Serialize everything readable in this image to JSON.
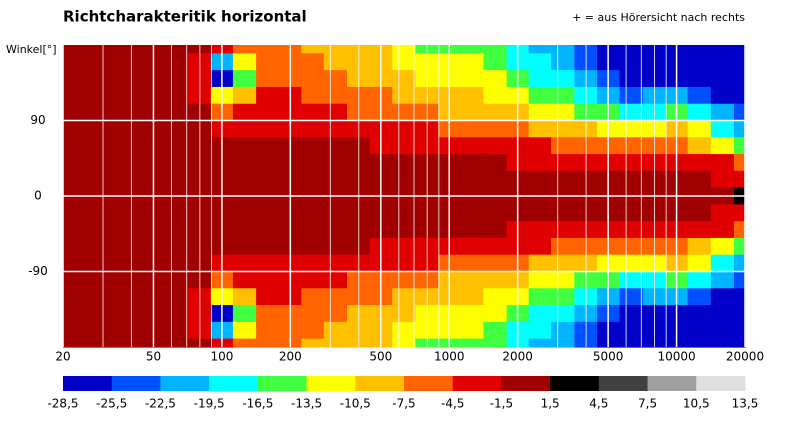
{
  "chart_data": {
    "type": "heatmap",
    "title": "Richtcharakteritik horizontal",
    "annotation": "+ = aus Hörersicht nach rechts",
    "y_label": "Winkel[°]",
    "log_x": true,
    "xlim": [
      20,
      20000
    ],
    "ylim": [
      -180,
      180
    ],
    "xticks": [
      20,
      50,
      100,
      200,
      500,
      1000,
      2000,
      5000,
      10000,
      20000
    ],
    "x_minor_ticks": [
      30,
      40,
      60,
      70,
      80,
      90,
      300,
      400,
      600,
      700,
      800,
      900,
      3000,
      4000,
      6000,
      7000,
      8000,
      9000
    ],
    "yticks": [
      90,
      0,
      -90
    ],
    "grid": true,
    "x": [
      20,
      25,
      32,
      40,
      50,
      63,
      80,
      100,
      125,
      160,
      200,
      250,
      315,
      400,
      500,
      630,
      800,
      1000,
      1250,
      1600,
      2000,
      2500,
      3150,
      4000,
      5000,
      6300,
      8000,
      10000,
      12500,
      16000,
      20000
    ],
    "y": [
      180,
      160,
      140,
      120,
      100,
      80,
      60,
      40,
      20,
      0,
      -20,
      -40,
      -60,
      -80,
      -100,
      -120,
      -140,
      -160,
      -180
    ],
    "z": [
      [
        0,
        0,
        0,
        0,
        0,
        0,
        -1,
        -4,
        -7,
        -6,
        -7,
        -8,
        -9,
        -10,
        -10,
        -12,
        -14,
        -15,
        -14,
        -16,
        -18,
        -20,
        -22,
        -25,
        -26,
        -27,
        -27,
        -27,
        -27,
        -27,
        -27
      ],
      [
        0,
        0,
        0,
        0,
        0,
        0,
        -2,
        -20,
        -12,
        -6,
        -6,
        -7,
        -8,
        -9,
        -10,
        -11,
        -12,
        -13,
        -13,
        -15,
        -17,
        -19,
        -21,
        -24,
        -26,
        -27,
        -27,
        -27,
        -27,
        -27,
        -27
      ],
      [
        0,
        0,
        0,
        0,
        0,
        0,
        -3,
        -26,
        -14,
        -5,
        -5,
        -6,
        -7,
        -8,
        -9,
        -10,
        -11,
        -12,
        -12,
        -13,
        -15,
        -17,
        -19,
        -22,
        -25,
        -26,
        -26,
        -27,
        -27,
        -27,
        -27
      ],
      [
        0,
        0,
        0,
        0,
        0,
        0,
        -2,
        -12,
        -8,
        -4,
        -4,
        -5,
        -6,
        -7,
        -7,
        -8,
        -9,
        -10,
        -10,
        -11,
        -12,
        -14,
        -16,
        -18,
        -21,
        -24,
        -22,
        -20,
        -24,
        -26,
        -27
      ],
      [
        0,
        0,
        0,
        0,
        0,
        0,
        -1,
        -5,
        -4,
        -3,
        -3,
        -3,
        -4,
        -5,
        -5,
        -6,
        -7,
        -8,
        -8,
        -9,
        -10,
        -11,
        -13,
        -14,
        -16,
        -18,
        -17,
        -14,
        -17,
        -22,
        -25
      ],
      [
        0,
        0,
        0,
        0,
        0,
        0,
        0,
        -2,
        -2,
        -2,
        -2,
        -2,
        -3,
        -3,
        -3,
        -4,
        -4,
        -5,
        -5,
        -6,
        -7,
        -8,
        -9,
        -10,
        -11,
        -12,
        -11,
        -10,
        -13,
        -17,
        -20
      ],
      [
        0,
        0,
        0,
        0,
        0,
        0,
        0,
        -1,
        -1,
        -1,
        -1,
        -1,
        -1,
        -1,
        -2,
        -2,
        -2,
        -3,
        -3,
        -3,
        -4,
        -4,
        -5,
        -6,
        -7,
        -7,
        -7,
        -6,
        -8,
        -11,
        -14
      ],
      [
        0,
        0,
        0,
        0,
        0,
        0,
        0,
        0,
        0,
        0,
        0,
        0,
        0,
        0,
        -1,
        -1,
        -1,
        -1,
        -1,
        -1,
        -2,
        -2,
        -2,
        -3,
        -3,
        -3,
        -3,
        -2,
        -3,
        -4,
        -5
      ],
      [
        0,
        0,
        0,
        0,
        0,
        0,
        0,
        0,
        0,
        0,
        0,
        0,
        0,
        0,
        0,
        0,
        0,
        0,
        0,
        0,
        -1,
        -1,
        -1,
        -1,
        -1,
        -1,
        -1,
        -1,
        -1,
        -2,
        -2
      ],
      [
        0,
        0,
        0,
        0,
        0,
        0,
        0,
        0,
        0,
        0,
        0,
        0,
        0,
        0,
        0,
        0,
        0,
        0,
        0,
        0,
        0,
        0,
        0,
        0,
        0,
        0,
        0,
        0,
        0,
        1,
        2
      ],
      [
        0,
        0,
        0,
        0,
        0,
        0,
        0,
        0,
        0,
        0,
        0,
        0,
        0,
        0,
        0,
        0,
        0,
        0,
        0,
        0,
        -1,
        -1,
        -1,
        -1,
        -1,
        -1,
        -1,
        -1,
        -1,
        -2,
        -2
      ],
      [
        0,
        0,
        0,
        0,
        0,
        0,
        0,
        0,
        0,
        0,
        0,
        0,
        0,
        0,
        -1,
        -1,
        -1,
        -1,
        -1,
        -1,
        -2,
        -2,
        -2,
        -3,
        -3,
        -3,
        -3,
        -2,
        -3,
        -4,
        -5
      ],
      [
        0,
        0,
        0,
        0,
        0,
        0,
        0,
        -1,
        -1,
        -1,
        -1,
        -1,
        -1,
        -1,
        -2,
        -2,
        -2,
        -3,
        -3,
        -3,
        -4,
        -4,
        -5,
        -6,
        -7,
        -7,
        -7,
        -6,
        -8,
        -11,
        -14
      ],
      [
        0,
        0,
        0,
        0,
        0,
        0,
        0,
        -2,
        -2,
        -2,
        -2,
        -2,
        -3,
        -3,
        -3,
        -4,
        -4,
        -5,
        -5,
        -6,
        -7,
        -8,
        -9,
        -10,
        -11,
        -12,
        -11,
        -10,
        -13,
        -17,
        -20
      ],
      [
        0,
        0,
        0,
        0,
        0,
        0,
        -1,
        -5,
        -4,
        -3,
        -3,
        -3,
        -4,
        -5,
        -5,
        -6,
        -7,
        -8,
        -8,
        -9,
        -10,
        -11,
        -13,
        -14,
        -16,
        -18,
        -17,
        -14,
        -17,
        -22,
        -25
      ],
      [
        0,
        0,
        0,
        0,
        0,
        0,
        -2,
        -12,
        -8,
        -4,
        -4,
        -5,
        -6,
        -7,
        -7,
        -8,
        -9,
        -10,
        -10,
        -11,
        -12,
        -14,
        -16,
        -18,
        -21,
        -24,
        -22,
        -20,
        -24,
        -26,
        -27
      ],
      [
        0,
        0,
        0,
        0,
        0,
        0,
        -3,
        -26,
        -14,
        -5,
        -5,
        -6,
        -7,
        -8,
        -9,
        -10,
        -11,
        -12,
        -12,
        -13,
        -15,
        -17,
        -19,
        -22,
        -25,
        -26,
        -26,
        -27,
        -27,
        -27,
        -27
      ],
      [
        0,
        0,
        0,
        0,
        0,
        0,
        -2,
        -20,
        -12,
        -6,
        -6,
        -7,
        -8,
        -9,
        -10,
        -11,
        -12,
        -13,
        -13,
        -15,
        -17,
        -19,
        -21,
        -24,
        -26,
        -27,
        -27,
        -27,
        -27,
        -27,
        -27
      ],
      [
        0,
        0,
        0,
        0,
        0,
        0,
        -1,
        -4,
        -7,
        -6,
        -7,
        -8,
        -9,
        -10,
        -10,
        -12,
        -14,
        -15,
        -14,
        -16,
        -18,
        -20,
        -22,
        -25,
        -26,
        -27,
        -27,
        -27,
        -27,
        -27,
        -27
      ]
    ],
    "colorbar_ticks": [
      {
        "value": -28.5,
        "label": "-28,5"
      },
      {
        "value": -25.5,
        "label": "-25,5"
      },
      {
        "value": -22.5,
        "label": "-22,5"
      },
      {
        "value": -19.5,
        "label": "-19,5"
      },
      {
        "value": -16.5,
        "label": "-16,5"
      },
      {
        "value": -13.5,
        "label": "-13,5"
      },
      {
        "value": -10.5,
        "label": "-10,5"
      },
      {
        "value": -7.5,
        "label": "-7,5"
      },
      {
        "value": -4.5,
        "label": "-4,5"
      },
      {
        "value": -1.5,
        "label": "-1,5"
      },
      {
        "value": 1.5,
        "label": "1,5"
      },
      {
        "value": 4.5,
        "label": "4,5"
      },
      {
        "value": 7.5,
        "label": "7,5"
      },
      {
        "value": 10.5,
        "label": "10,5"
      },
      {
        "value": 13.5,
        "label": "13,5"
      }
    ],
    "colorbar_colors": [
      "#0000c8",
      "#0050ff",
      "#00b4ff",
      "#00ffff",
      "#40ff40",
      "#ffff00",
      "#ffc000",
      "#ff6400",
      "#e00000",
      "#a00000",
      "#000000",
      "#404040",
      "#a0a0a0",
      "#e0e0e0"
    ]
  }
}
